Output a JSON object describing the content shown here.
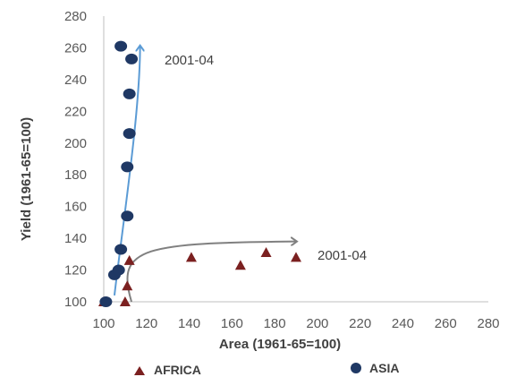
{
  "chart_data": {
    "type": "scatter",
    "xlabel": "Area (1961-65=100)",
    "ylabel": "Yield (1961-65=100)",
    "xlim": [
      100,
      280
    ],
    "ylim": [
      100,
      280
    ],
    "x_ticks": [
      100,
      120,
      140,
      160,
      180,
      200,
      220,
      240,
      260,
      280
    ],
    "y_ticks": [
      100,
      120,
      140,
      160,
      180,
      200,
      220,
      240,
      260,
      280
    ],
    "grid": false,
    "legend_placement": "bottom",
    "series": [
      {
        "name": "AFRICA",
        "marker": "triangle",
        "color": "#7b2020",
        "x": [
          100,
          110,
          111,
          112,
          141,
          164,
          176,
          190
        ],
        "y": [
          100,
          100,
          110,
          126,
          128,
          123,
          131,
          128
        ]
      },
      {
        "name": "ASIA",
        "marker": "circle",
        "color": "#1f3864",
        "x": [
          101,
          105,
          107,
          108,
          111,
          111,
          112,
          112,
          113,
          108
        ],
        "y": [
          100,
          117,
          120,
          133,
          154,
          185,
          206,
          231,
          253,
          261
        ]
      }
    ],
    "annotations": [
      {
        "text": "2001-04",
        "near_series": "ASIA",
        "arrow_color": "#5b9bd5",
        "arrow_to": [
          117,
          261
        ]
      },
      {
        "text": "2001-04",
        "near_series": "AFRICA",
        "arrow_color": "#808080",
        "arrow_to": [
          190,
          138
        ]
      }
    ]
  }
}
